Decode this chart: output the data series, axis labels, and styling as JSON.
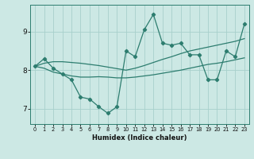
{
  "title": "",
  "xlabel": "Humidex (Indice chaleur)",
  "bg_color": "#cce8e4",
  "line_color": "#2d7d6f",
  "grid_color": "#a8d0cb",
  "x_values": [
    0,
    1,
    2,
    3,
    4,
    5,
    6,
    7,
    8,
    9,
    10,
    11,
    12,
    13,
    14,
    15,
    16,
    17,
    18,
    19,
    20,
    21,
    22,
    23
  ],
  "series1": [
    8.1,
    8.3,
    8.05,
    7.9,
    7.75,
    7.3,
    7.25,
    7.05,
    6.88,
    7.05,
    8.5,
    8.35,
    9.05,
    9.45,
    8.7,
    8.65,
    8.7,
    8.4,
    8.4,
    7.75,
    7.75,
    8.5,
    8.35,
    9.2
  ],
  "series2": [
    8.1,
    8.05,
    7.95,
    7.9,
    7.85,
    7.82,
    7.82,
    7.83,
    7.82,
    7.8,
    7.8,
    7.82,
    7.85,
    7.88,
    7.92,
    7.96,
    8.0,
    8.05,
    8.1,
    8.15,
    8.18,
    8.22,
    8.27,
    8.32
  ],
  "series3": [
    8.1,
    8.18,
    8.22,
    8.22,
    8.2,
    8.18,
    8.15,
    8.12,
    8.08,
    8.04,
    8.0,
    8.05,
    8.12,
    8.2,
    8.28,
    8.35,
    8.43,
    8.5,
    8.55,
    8.6,
    8.65,
    8.7,
    8.75,
    8.82
  ],
  "yticks": [
    7,
    8,
    9
  ],
  "ylim": [
    6.6,
    9.7
  ],
  "xlim": [
    -0.5,
    23.5
  ]
}
